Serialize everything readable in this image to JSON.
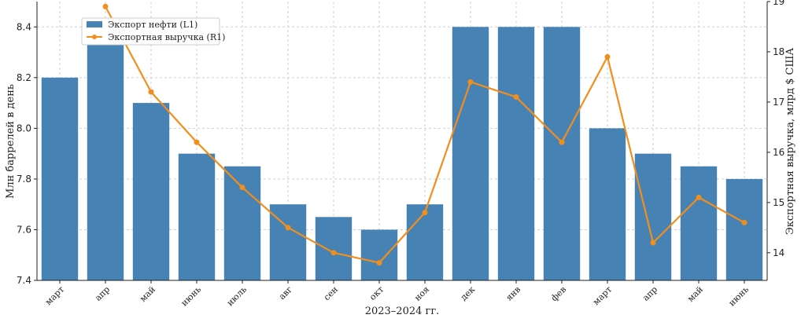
{
  "chart_data": {
    "type": "bar+line",
    "categories": [
      "март",
      "апр",
      "май",
      "июнь",
      "июль",
      "авг",
      "сен",
      "окт",
      "ноя",
      "дек",
      "янв",
      "фев",
      "март",
      "апр",
      "май",
      "июнь"
    ],
    "series": [
      {
        "name": "Экспорт нефти (L1)",
        "type": "bar",
        "axis": "left",
        "color": "#4682b4",
        "values": [
          8.2,
          8.4,
          8.1,
          7.9,
          7.85,
          7.7,
          7.65,
          7.6,
          7.7,
          8.4,
          8.4,
          8.4,
          8.0,
          7.9,
          7.85,
          7.8
        ]
      },
      {
        "name": "Экспортная выручка (R1)",
        "type": "line",
        "axis": "right",
        "color": "#f28e1c",
        "values": [
          null,
          18.9,
          17.2,
          16.2,
          15.3,
          14.5,
          14.0,
          13.8,
          14.8,
          17.4,
          17.1,
          16.2,
          17.9,
          14.2,
          15.1,
          14.6
        ]
      }
    ],
    "xlabel": "2023–2024 гг.",
    "ylabel": "Млн баррелей в день",
    "y2label": "Экспортная выручка, млрд $ США",
    "ylim": [
      7.4,
      8.5
    ],
    "y2lim": [
      13.45,
      19.0
    ],
    "yticks": [
      "7.4",
      "7.6",
      "7.8",
      "8.0",
      "8.2",
      "8.4"
    ],
    "y2ticks": [
      "14",
      "15",
      "16",
      "17",
      "18",
      "19"
    ],
    "grid": true,
    "legend": "top-left"
  }
}
